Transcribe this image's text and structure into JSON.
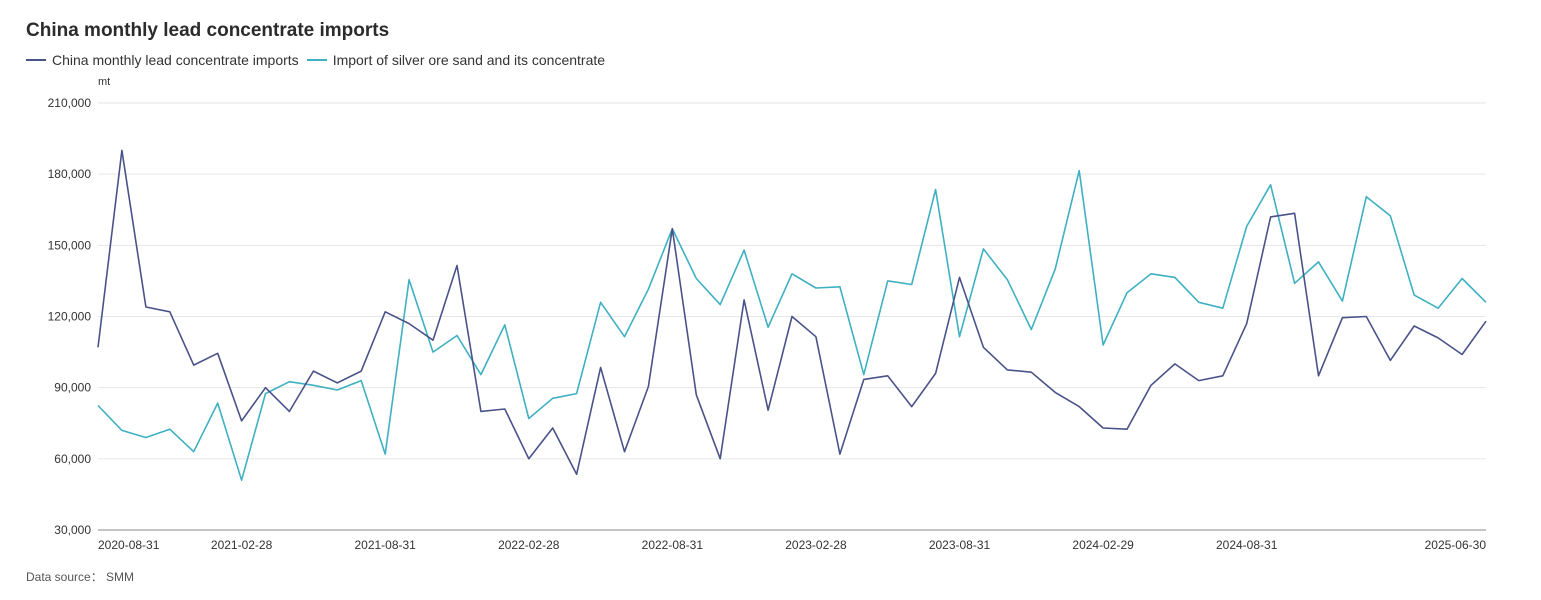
{
  "title": "China monthly lead concentrate imports",
  "unit": "mt",
  "source": "Data source： SMM",
  "legend": [
    {
      "label": "China monthly lead concentrate imports",
      "color": "#4a5389"
    },
    {
      "label": "Import of silver ore sand and its concentrate",
      "color": "#3fb0c2"
    }
  ],
  "chart_data": {
    "type": "line",
    "ylim": [
      30000,
      210000
    ],
    "yticks": [
      "210,000",
      "180,000",
      "150,000",
      "120,000",
      "90,000",
      "60,000",
      "30,000"
    ],
    "ytick_values": [
      210000,
      180000,
      150000,
      120000,
      90000,
      60000,
      30000
    ],
    "xtick_labels": [
      "2020-08-31",
      "2021-02-28",
      "2021-08-31",
      "2022-02-28",
      "2022-08-31",
      "2023-02-28",
      "2023-08-31",
      "2024-02-29",
      "2024-08-31",
      "2025-06-30"
    ],
    "xtick_indices": [
      0,
      6,
      12,
      18,
      24,
      30,
      36,
      42,
      48,
      58
    ],
    "x": [
      "2020-08",
      "2020-09",
      "2020-10",
      "2020-11",
      "2020-12",
      "2021-01",
      "2021-02",
      "2021-03",
      "2021-04",
      "2021-05",
      "2021-06",
      "2021-07",
      "2021-08",
      "2021-09",
      "2021-10",
      "2021-11",
      "2021-12",
      "2022-01",
      "2022-02",
      "2022-03",
      "2022-04",
      "2022-05",
      "2022-06",
      "2022-07",
      "2022-08",
      "2022-09",
      "2022-10",
      "2022-11",
      "2022-12",
      "2023-01",
      "2023-02",
      "2023-03",
      "2023-04",
      "2023-05",
      "2023-06",
      "2023-07",
      "2023-08",
      "2023-09",
      "2023-10",
      "2023-11",
      "2023-12",
      "2024-01",
      "2024-02",
      "2024-03",
      "2024-04",
      "2024-05",
      "2024-06",
      "2024-07",
      "2024-08",
      "2024-09",
      "2024-10",
      "2024-11",
      "2024-12",
      "2025-01",
      "2025-02",
      "2025-03",
      "2025-04",
      "2025-05",
      "2025-06"
    ],
    "series": [
      {
        "name": "China monthly lead concentrate imports",
        "color": "#4a5389",
        "values": [
          107000,
          190000,
          124000,
          122000,
          99500,
          104500,
          76000,
          90000,
          80000,
          97000,
          92000,
          97000,
          122000,
          117000,
          110000,
          141500,
          80000,
          81000,
          60000,
          73000,
          53500,
          98500,
          63000,
          90500,
          157000,
          87000,
          60000,
          127000,
          80500,
          120000,
          111500,
          62000,
          93500,
          95000,
          82000,
          96000,
          136500,
          107000,
          97500,
          96500,
          88000,
          82000,
          73000,
          72500,
          91000,
          100000,
          93000,
          95000,
          117000,
          162000,
          163500,
          95000,
          119500,
          120000,
          101500,
          116000,
          111000,
          104000,
          118000
        ]
      },
      {
        "name": "Import of silver ore sand and its concentrate",
        "color": "#3fb0c2",
        "values": [
          82500,
          72000,
          69000,
          72500,
          63000,
          83500,
          51000,
          87500,
          92500,
          91000,
          89000,
          93000,
          62000,
          135500,
          105000,
          112000,
          95500,
          116500,
          77000,
          85500,
          87500,
          126000,
          111500,
          131500,
          157000,
          136000,
          125000,
          148000,
          115500,
          138000,
          132000,
          132500,
          95500,
          135000,
          133500,
          173500,
          111500,
          148500,
          135500,
          114500,
          140000,
          181500,
          108000,
          130000,
          138000,
          136500,
          126000,
          123500,
          158000,
          175500,
          134000,
          143000,
          126500,
          170500,
          162500,
          129000,
          123500,
          136000,
          126000
        ]
      }
    ],
    "grid": true,
    "legend_position": "top-left"
  }
}
